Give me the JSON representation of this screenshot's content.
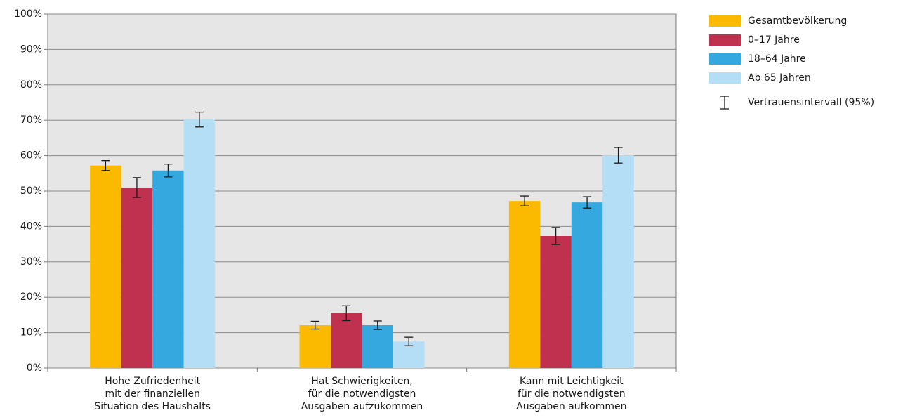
{
  "chart_data": {
    "type": "bar",
    "categories": [
      [
        "Hohe Zufriedenheit",
        "mit der finanziellen",
        "Situation des Haushalts"
      ],
      [
        "Hat Schwierigkeiten,",
        "für die notwendigsten",
        "Ausgaben aufzukommen"
      ],
      [
        "Kann mit Leichtigkeit",
        "für die notwendigsten",
        "Ausgaben aufkommen"
      ]
    ],
    "series": [
      {
        "name": "Gesamtbevölkerung",
        "color": "#fbb900",
        "values": [
          57.2,
          12.1,
          47.2
        ],
        "errors": [
          1.4,
          1.1,
          1.4
        ]
      },
      {
        "name": "0–17 Jahre",
        "color": "#c0304f",
        "values": [
          51.0,
          15.5,
          37.3
        ],
        "errors": [
          2.8,
          2.1,
          2.4
        ]
      },
      {
        "name": "18–64 Jahre",
        "color": "#35a8e0",
        "values": [
          55.8,
          12.1,
          46.8
        ],
        "errors": [
          1.8,
          1.2,
          1.6
        ]
      },
      {
        "name": "Ab 65 Jahren",
        "color": "#b3def6",
        "values": [
          70.2,
          7.5,
          60.1
        ],
        "errors": [
          2.1,
          1.2,
          2.2
        ]
      }
    ],
    "error_label": "Vertrauensintervall (95%)",
    "ylim": [
      0,
      100
    ],
    "yticks": [
      {
        "value": 0,
        "label": "0%"
      },
      {
        "value": 10,
        "label": "10%"
      },
      {
        "value": 20,
        "label": "20%"
      },
      {
        "value": 30,
        "label": "30%"
      },
      {
        "value": 40,
        "label": "40%"
      },
      {
        "value": 50,
        "label": "50%"
      },
      {
        "value": 60,
        "label": "60%"
      },
      {
        "value": 70,
        "label": "70%"
      },
      {
        "value": 80,
        "label": "80%"
      },
      {
        "value": 90,
        "label": "90%"
      },
      {
        "value": 100,
        "label": "100%"
      }
    ],
    "grid": true,
    "legend": "right"
  }
}
